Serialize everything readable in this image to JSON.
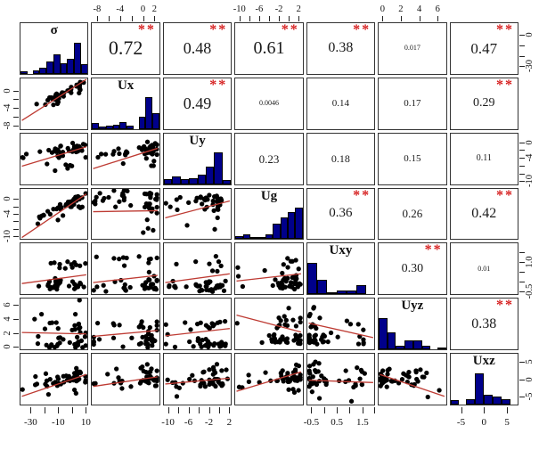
{
  "matrix": {
    "variables": [
      {
        "id": "sigma",
        "name": "σ",
        "hist": [
          0.08,
          0,
          0.12,
          0.2,
          0.38,
          0.62,
          0.35,
          0.48,
          1.0,
          0.3
        ]
      },
      {
        "id": "ux",
        "name": "Ux",
        "hist": [
          0.18,
          0.08,
          0.1,
          0.12,
          0.22,
          0.1,
          0,
          0.38,
          1.0,
          0.5
        ]
      },
      {
        "id": "uy",
        "name": "Uy",
        "hist": [
          0.15,
          0.25,
          0.15,
          0.18,
          0.3,
          0.55,
          1.0,
          0.12
        ]
      },
      {
        "id": "ug",
        "name": "Ug",
        "hist": [
          0.1,
          0.15,
          0.06,
          0.08,
          0.15,
          0.5,
          0.68,
          0.85,
          1.0
        ]
      },
      {
        "id": "uxy",
        "name": "Uxy",
        "hist": [
          1.0,
          0.45,
          0.05,
          0.13,
          0.13,
          0.28,
          0
        ]
      },
      {
        "id": "uyz",
        "name": "Uyz",
        "hist": [
          1.0,
          0.55,
          0.12,
          0.3,
          0.28,
          0.12,
          0,
          0.06
        ]
      },
      {
        "id": "uxz",
        "name": "Uxz",
        "hist": [
          0.15,
          0,
          0.18,
          1.0,
          0.3,
          0.25,
          0.18,
          0
        ]
      }
    ],
    "upper": [
      {
        "r": 0,
        "c": 1,
        "text": "0.72",
        "value": 0.72,
        "stars": true
      },
      {
        "r": 0,
        "c": 2,
        "text": "0.48",
        "value": 0.48,
        "stars": true
      },
      {
        "r": 0,
        "c": 3,
        "text": "0.61",
        "value": 0.61,
        "stars": true
      },
      {
        "r": 0,
        "c": 4,
        "text": "0.38",
        "value": 0.38,
        "stars": true
      },
      {
        "r": 0,
        "c": 5,
        "text": "0.017",
        "value": 0.017,
        "stars": false
      },
      {
        "r": 0,
        "c": 6,
        "text": "0.47",
        "value": 0.47,
        "stars": true
      },
      {
        "r": 1,
        "c": 2,
        "text": "0.49",
        "value": 0.49,
        "stars": true
      },
      {
        "r": 1,
        "c": 3,
        "text": "0.0046",
        "value": 0.0046,
        "stars": false
      },
      {
        "r": 1,
        "c": 4,
        "text": "0.14",
        "value": 0.14,
        "stars": false
      },
      {
        "r": 1,
        "c": 5,
        "text": "0.17",
        "value": 0.17,
        "stars": false
      },
      {
        "r": 1,
        "c": 6,
        "text": "0.29",
        "value": 0.29,
        "stars": true
      },
      {
        "r": 2,
        "c": 3,
        "text": "0.23",
        "value": 0.23,
        "stars": false
      },
      {
        "r": 2,
        "c": 4,
        "text": "0.18",
        "value": 0.18,
        "stars": false
      },
      {
        "r": 2,
        "c": 5,
        "text": "0.15",
        "value": 0.15,
        "stars": false
      },
      {
        "r": 2,
        "c": 6,
        "text": "0.11",
        "value": 0.11,
        "stars": false
      },
      {
        "r": 3,
        "c": 4,
        "text": "0.36",
        "value": 0.36,
        "stars": true
      },
      {
        "r": 3,
        "c": 5,
        "text": "0.26",
        "value": 0.26,
        "stars": false
      },
      {
        "r": 3,
        "c": 6,
        "text": "0.42",
        "value": 0.42,
        "stars": true
      },
      {
        "r": 4,
        "c": 5,
        "text": "0.30",
        "value": 0.3,
        "stars": true
      },
      {
        "r": 4,
        "c": 6,
        "text": "0.01",
        "value": 0.01,
        "stars": false
      },
      {
        "r": 5,
        "c": 6,
        "text": "0.38",
        "value": 0.38,
        "stars": true
      }
    ],
    "lower": [
      {
        "r": 1,
        "c": 0,
        "slope": 0.85,
        "intercept": 0.15,
        "mix": 0.8
      },
      {
        "r": 2,
        "c": 0,
        "slope": 0.4,
        "intercept": 0.35,
        "mix": 0.45
      },
      {
        "r": 2,
        "c": 1,
        "slope": 0.42,
        "intercept": 0.3,
        "mix": 0.45
      },
      {
        "r": 3,
        "c": 0,
        "slope": 0.9,
        "intercept": 0.02,
        "mix": 0.7
      },
      {
        "r": 3,
        "c": 1,
        "slope": 0.02,
        "intercept": 0.55,
        "mix": 0.05
      },
      {
        "r": 3,
        "c": 2,
        "slope": 0.35,
        "intercept": 0.42,
        "mix": 0.3
      },
      {
        "r": 4,
        "c": 0,
        "slope": 0.18,
        "intercept": 0.2,
        "mix": 0.3
      },
      {
        "r": 4,
        "c": 1,
        "slope": 0.15,
        "intercept": 0.22,
        "mix": 0.15
      },
      {
        "r": 4,
        "c": 2,
        "slope": 0.18,
        "intercept": 0.22,
        "mix": 0.15
      },
      {
        "r": 4,
        "c": 3,
        "slope": 0.15,
        "intercept": 0.25,
        "mix": 0.3
      },
      {
        "r": 5,
        "c": 0,
        "slope": -0.03,
        "intercept": 0.33,
        "mix": 0.05
      },
      {
        "r": 5,
        "c": 1,
        "slope": 0.12,
        "intercept": 0.25,
        "mix": 0.12
      },
      {
        "r": 5,
        "c": 2,
        "slope": 0.15,
        "intercept": 0.26,
        "mix": 0.12
      },
      {
        "r": 5,
        "c": 3,
        "slope": -0.35,
        "intercept": 0.68,
        "mix": 0.25
      },
      {
        "r": 5,
        "c": 4,
        "slope": -0.3,
        "intercept": 0.52,
        "mix": 0.25
      },
      {
        "r": 6,
        "c": 0,
        "slope": 0.45,
        "intercept": 0.15,
        "mix": 0.4
      },
      {
        "r": 6,
        "c": 1,
        "slope": 0.2,
        "intercept": 0.35,
        "mix": 0.25
      },
      {
        "r": 6,
        "c": 2,
        "slope": 0.12,
        "intercept": 0.4,
        "mix": 0.15
      },
      {
        "r": 6,
        "c": 3,
        "slope": 0.4,
        "intercept": 0.25,
        "mix": 0.35
      },
      {
        "r": 6,
        "c": 4,
        "slope": -0.05,
        "intercept": 0.48,
        "mix": 0.05
      },
      {
        "r": 6,
        "c": 5,
        "slope": -0.45,
        "intercept": 0.6,
        "mix": 0.35
      }
    ],
    "scatter": {
      "seed": 11,
      "points_per_panel": 44
    },
    "axes": {
      "top": [
        {
          "c": 1,
          "ticks": [
            0.083,
            0.25,
            0.417,
            0.583,
            0.75,
            0.917
          ],
          "labels": [
            {
              "p": 0.083,
              "t": "-8"
            },
            {
              "p": 0.417,
              "t": "-4"
            },
            {
              "p": 0.75,
              "t": "0"
            },
            {
              "p": 0.917,
              "t": "2"
            }
          ]
        },
        {
          "c": 3,
          "ticks": [
            0.071,
            0.214,
            0.357,
            0.5,
            0.643,
            0.786,
            0.929
          ],
          "labels": [
            {
              "p": 0.071,
              "t": "-10"
            },
            {
              "p": 0.357,
              "t": "-6"
            },
            {
              "p": 0.643,
              "t": "-2"
            },
            {
              "p": 0.929,
              "t": "2"
            }
          ]
        },
        {
          "c": 5,
          "ticks": [
            0.067,
            0.333,
            0.6,
            0.867
          ],
          "labels": [
            {
              "p": 0.067,
              "t": "0"
            },
            {
              "p": 0.333,
              "t": "2"
            },
            {
              "p": 0.6,
              "t": "4"
            },
            {
              "p": 0.867,
              "t": "6"
            }
          ]
        }
      ],
      "bottom": [
        {
          "c": 0,
          "ticks": [
            0.16,
            0.36,
            0.56,
            0.76,
            0.96
          ],
          "labels": [
            {
              "p": 0.16,
              "t": "-30"
            },
            {
              "p": 0.56,
              "t": "-10"
            },
            {
              "p": 0.96,
              "t": "10"
            }
          ]
        },
        {
          "c": 2,
          "ticks": [
            0.074,
            0.222,
            0.37,
            0.519,
            0.667,
            0.815,
            0.963
          ],
          "labels": [
            {
              "p": 0.074,
              "t": "-10"
            },
            {
              "p": 0.37,
              "t": "-6"
            },
            {
              "p": 0.667,
              "t": "-2"
            },
            {
              "p": 0.963,
              "t": "2"
            }
          ]
        },
        {
          "c": 4,
          "ticks": [
            0.074,
            0.259,
            0.444,
            0.63,
            0.815,
            0.985
          ],
          "labels": [
            {
              "p": 0.074,
              "t": "-0.5"
            },
            {
              "p": 0.444,
              "t": "0.5"
            },
            {
              "p": 0.815,
              "t": "1.5"
            }
          ]
        },
        {
          "c": 6,
          "ticks": [
            0.167,
            0.5,
            0.833
          ],
          "labels": [
            {
              "p": 0.167,
              "t": "-5"
            },
            {
              "p": 0.5,
              "t": "0"
            },
            {
              "p": 0.833,
              "t": "5"
            }
          ]
        }
      ],
      "left": [
        {
          "r": 1,
          "ticks": [
            0.083,
            0.25,
            0.417,
            0.583,
            0.75
          ],
          "labels": [
            {
              "p": 0.75,
              "t": "0"
            },
            {
              "p": 0.417,
              "t": "-4"
            },
            {
              "p": 0.083,
              "t": "-8"
            }
          ]
        },
        {
          "r": 3,
          "ticks": [
            0.071,
            0.214,
            0.357,
            0.5,
            0.643,
            0.786
          ],
          "labels": [
            {
              "p": 0.786,
              "t": "0"
            },
            {
              "p": 0.5,
              "t": "-4"
            },
            {
              "p": 0.071,
              "t": "-10"
            }
          ]
        },
        {
          "r": 5,
          "ticks": [
            0.067,
            0.333,
            0.6,
            0.867
          ],
          "labels": [
            {
              "p": 0.867,
              "t": "6"
            },
            {
              "p": 0.6,
              "t": "4"
            },
            {
              "p": 0.333,
              "t": "2"
            },
            {
              "p": 0.067,
              "t": "0"
            }
          ]
        }
      ],
      "right": [
        {
          "r": 0,
          "ticks": [
            0.16,
            0.36,
            0.56,
            0.76
          ],
          "labels": [
            {
              "p": 0.76,
              "t": "0"
            },
            {
              "p": 0.16,
              "t": "-30"
            }
          ]
        },
        {
          "r": 2,
          "ticks": [
            0.074,
            0.222,
            0.37,
            0.519,
            0.667,
            0.815
          ],
          "labels": [
            {
              "p": 0.815,
              "t": "0"
            },
            {
              "p": 0.519,
              "t": "-4"
            },
            {
              "p": 0.074,
              "t": "-10"
            }
          ]
        },
        {
          "r": 4,
          "ticks": [
            0.074,
            0.259,
            0.444,
            0.63,
            0.815
          ],
          "labels": [
            {
              "p": 0.63,
              "t": "1.0"
            },
            {
              "p": 0.074,
              "t": "-0.5"
            }
          ]
        },
        {
          "r": 6,
          "ticks": [
            0.167,
            0.5,
            0.833
          ],
          "labels": [
            {
              "p": 0.833,
              "t": "5"
            },
            {
              "p": 0.5,
              "t": "0"
            },
            {
              "p": 0.167,
              "t": "-5"
            }
          ]
        }
      ]
    },
    "style": {
      "histogram_color": "#00008B",
      "bar_border": "#000000",
      "star_color": "#D62020",
      "star_text": "**",
      "line_color": "#BE3B33",
      "dot_color": "#000000",
      "panel_border": "#333333",
      "text_color": "#1A1A1A"
    }
  },
  "chart_data": {
    "type": "scatter",
    "subtype": "pairs-scatterplot-matrix",
    "title": "",
    "variables": [
      "σ",
      "Ux",
      "Uy",
      "Ug",
      "Uxy",
      "Uyz",
      "Uxz"
    ],
    "diagonal": "histograms with variable names",
    "upper_triangle": "correlation coefficients, ** marks significance (red)",
    "lower_triangle": "scatterplots of points with red fitted line",
    "correlations": [
      {
        "pair": "σ-Ux",
        "r": 0.72,
        "sig": "**"
      },
      {
        "pair": "σ-Uy",
        "r": 0.48,
        "sig": "**"
      },
      {
        "pair": "σ-Ug",
        "r": 0.61,
        "sig": "**"
      },
      {
        "pair": "σ-Uxy",
        "r": 0.38,
        "sig": "**"
      },
      {
        "pair": "σ-Uyz",
        "r": 0.017,
        "sig": ""
      },
      {
        "pair": "σ-Uxz",
        "r": 0.47,
        "sig": "**"
      },
      {
        "pair": "Ux-Uy",
        "r": 0.49,
        "sig": "**"
      },
      {
        "pair": "Ux-Ug",
        "r": 0.0046,
        "sig": ""
      },
      {
        "pair": "Ux-Uxy",
        "r": 0.14,
        "sig": ""
      },
      {
        "pair": "Ux-Uyz",
        "r": 0.17,
        "sig": ""
      },
      {
        "pair": "Ux-Uxz",
        "r": 0.29,
        "sig": "**"
      },
      {
        "pair": "Uy-Ug",
        "r": 0.23,
        "sig": ""
      },
      {
        "pair": "Uy-Uxy",
        "r": 0.18,
        "sig": ""
      },
      {
        "pair": "Uy-Uyz",
        "r": 0.15,
        "sig": ""
      },
      {
        "pair": "Uy-Uxz",
        "r": 0.11,
        "sig": ""
      },
      {
        "pair": "Ug-Uxy",
        "r": 0.36,
        "sig": "**"
      },
      {
        "pair": "Ug-Uyz",
        "r": 0.26,
        "sig": ""
      },
      {
        "pair": "Ug-Uxz",
        "r": 0.42,
        "sig": "**"
      },
      {
        "pair": "Uxy-Uyz",
        "r": 0.3,
        "sig": "**"
      },
      {
        "pair": "Uxy-Uxz",
        "r": 0.01,
        "sig": ""
      },
      {
        "pair": "Uyz-Uxz",
        "r": 0.38,
        "sig": "**"
      }
    ],
    "axis_tick_labels": {
      "σ": [
        "-30",
        "-10",
        "10"
      ],
      "Ux": [
        "-8",
        "-4",
        "0",
        "2"
      ],
      "Uy": [
        "-10",
        "-6",
        "-2",
        "2"
      ],
      "Ug": [
        "-10",
        "-6",
        "-2",
        "2"
      ],
      "Uxy": [
        "-0.5",
        "0.5",
        "1.5"
      ],
      "Uyz": [
        "0",
        "2",
        "4",
        "6"
      ],
      "Uxz": [
        "-5",
        "0",
        "5"
      ]
    }
  }
}
